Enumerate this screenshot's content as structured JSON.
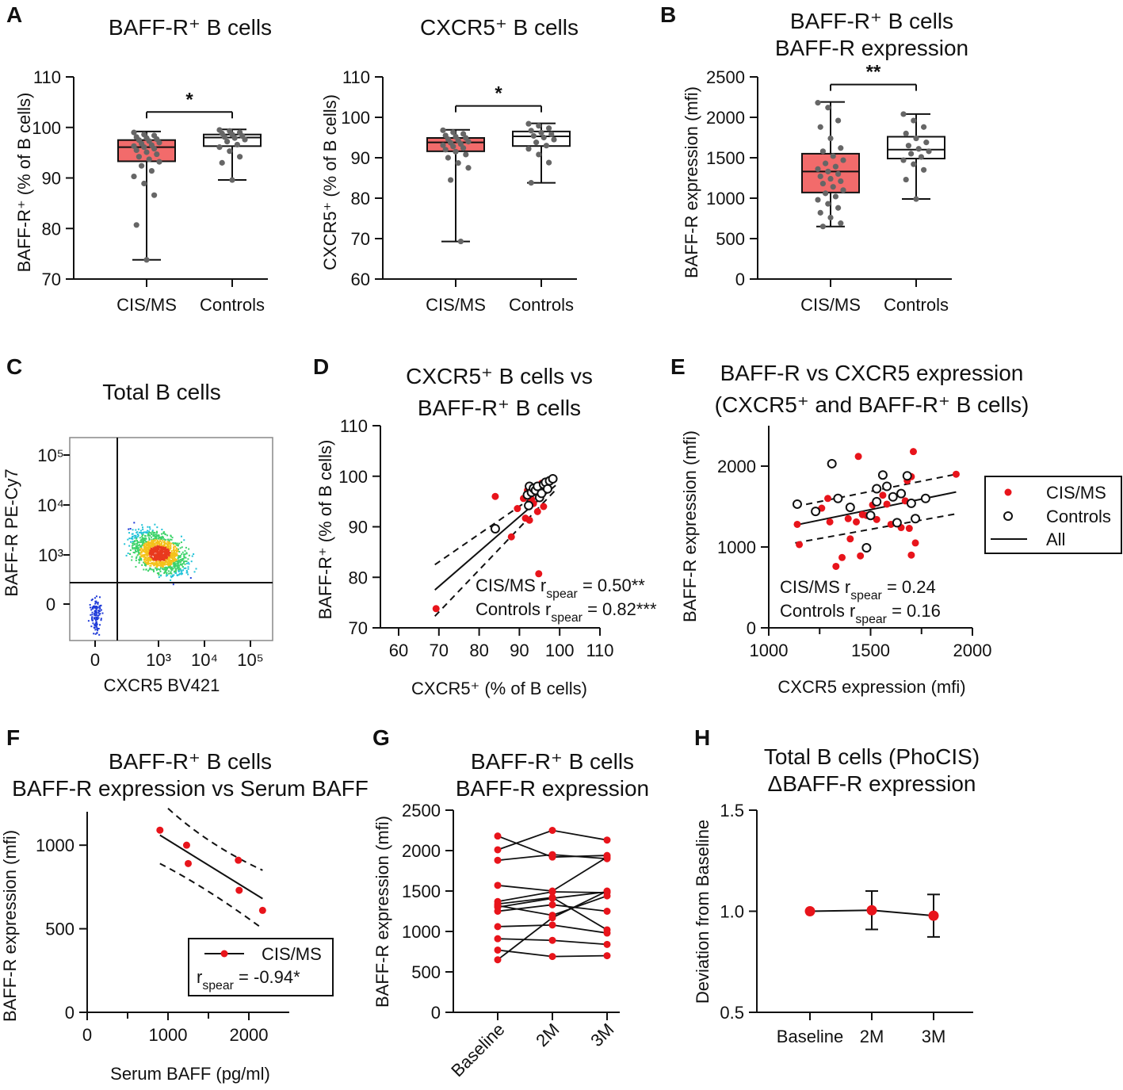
{
  "colors": {
    "cis_fill": "#f26b6b",
    "cis_dot": "#e8141b",
    "dot_grey": "#666666",
    "axis": "#111111"
  },
  "panels": {
    "A1": {
      "letter": "A",
      "title": [
        "BAFF-R⁺ B cells"
      ],
      "ylabel": "BAFF-R⁺ (% of B cells)",
      "yticks": [
        "70",
        "80",
        "90",
        "100",
        "110"
      ],
      "categories": [
        "CIS/MS",
        "Controls"
      ],
      "sig": "*"
    },
    "A2": {
      "title": [
        "CXCR5⁺ B cells"
      ],
      "ylabel": "CXCR5⁺ (% of B cells)",
      "yticks": [
        "60",
        "70",
        "80",
        "90",
        "100",
        "110"
      ],
      "categories": [
        "CIS/MS",
        "Controls"
      ],
      "sig": "*"
    },
    "B": {
      "letter": "B",
      "title": [
        "BAFF-R⁺ B cells",
        "BAFF-R expression"
      ],
      "ylabel": "BAFF-R expression (mfi)",
      "yticks": [
        "0",
        "500",
        "1000",
        "1500",
        "2000",
        "2500"
      ],
      "categories": [
        "CIS/MS",
        "Controls"
      ],
      "sig": "**"
    },
    "C": {
      "letter": "C",
      "title": [
        "Total B cells"
      ],
      "ylabel": "BAFF-R PE-Cy7",
      "xlabel": "CXCR5 BV421",
      "yticks": [
        "10⁵",
        "10⁴",
        "10³",
        "0"
      ],
      "xticks": [
        "0",
        "10³",
        "10⁴",
        "10⁵"
      ]
    },
    "D": {
      "letter": "D",
      "title": [
        "CXCR5⁺ B cells vs",
        "BAFF-R⁺ B cells"
      ],
      "ylabel": "BAFF-R⁺ (% of B cells)",
      "xlabel": "CXCR5⁺ (% of B cells)",
      "yticks": [
        "70",
        "80",
        "90",
        "100",
        "110"
      ],
      "xticks": [
        "60",
        "70",
        "80",
        "90",
        "100",
        "110"
      ],
      "stat1": "CIS/MS r",
      "stat1_sub": "spear",
      "stat1_val": " = 0.50**",
      "stat2": "Controls r",
      "stat2_sub": "spear",
      "stat2_val": " = 0.82***"
    },
    "E": {
      "letter": "E",
      "title": [
        "BAFF-R vs CXCR5 expression",
        "(CXCR5⁺ and BAFF-R⁺ B cells)"
      ],
      "ylabel": "BAFF-R expression (mfi)",
      "xlabel": "CXCR5 expression (mfi)",
      "yticks": [
        "0",
        "1000",
        "2000"
      ],
      "xticks": [
        "1000",
        "1500",
        "2000"
      ],
      "legend": [
        "CIS/MS",
        "Controls",
        "All"
      ],
      "stat1": "CIS/MS r",
      "stat1_sub": "spear",
      "stat1_val": " = 0.24",
      "stat2": "Controls r",
      "stat2_sub": "spear",
      "stat2_val": " = 0.16"
    },
    "F": {
      "letter": "F",
      "title": [
        "BAFF-R⁺ B cells",
        "BAFF-R expression vs Serum BAFF"
      ],
      "ylabel": "BAFF-R expression (mfi)",
      "xlabel": "Serum BAFF (pg/ml)",
      "yticks": [
        "0",
        "500",
        "1000"
      ],
      "xticks": [
        "0",
        "1000",
        "2000"
      ],
      "legend": "CIS/MS",
      "stat": "r",
      "stat_sub": "spear",
      "stat_val": " = -0.94*"
    },
    "G": {
      "letter": "G",
      "title": [
        "BAFF-R⁺ B cells",
        "BAFF-R expression"
      ],
      "ylabel": "BAFF-R expression (mfi)",
      "yticks": [
        "0",
        "500",
        "1000",
        "1500",
        "2000",
        "2500"
      ],
      "xticks": [
        "Baseline",
        "2M",
        "3M"
      ]
    },
    "H": {
      "letter": "H",
      "title": [
        "Total B cells (PhoCIS)",
        "ΔBAFF-R expression"
      ],
      "ylabel": "Deviation from Baseline",
      "yticks": [
        "0.5",
        "1.0",
        "1.5"
      ],
      "xticks": [
        "Baseline",
        "2M",
        "3M"
      ]
    }
  },
  "chart_data": [
    {
      "id": "A1",
      "type": "box",
      "title": "BAFF-R⁺ B cells",
      "ylabel": "BAFF-R⁺ (% of B cells)",
      "ylim": [
        70,
        110
      ],
      "groups": [
        {
          "name": "CIS/MS",
          "min": 73.8,
          "q1": 93.3,
          "median": 96.1,
          "q3": 97.5,
          "max": 99.2,
          "points": [
            99.0,
            98.6,
            98.4,
            98.1,
            97.9,
            97.7,
            97.5,
            97.3,
            97.0,
            96.8,
            96.5,
            96.3,
            96.1,
            95.8,
            95.5,
            95.1,
            94.7,
            94.2,
            93.7,
            93.2,
            92.4,
            91.4,
            90.3,
            88.9,
            86.6,
            80.7,
            73.8
          ]
        },
        {
          "name": "Controls",
          "min": 89.6,
          "q1": 96.3,
          "median": 98.0,
          "q3": 98.6,
          "max": 99.6,
          "points": [
            99.5,
            99.3,
            99.0,
            98.8,
            98.6,
            98.3,
            98.1,
            97.9,
            97.6,
            97.2,
            96.6,
            96.1,
            95.3,
            94.2,
            93.0,
            89.6
          ]
        }
      ],
      "significance": "*"
    },
    {
      "id": "A2",
      "type": "box",
      "title": "CXCR5⁺ B cells",
      "ylabel": "CXCR5⁺ (% of B cells)",
      "ylim": [
        60,
        110
      ],
      "groups": [
        {
          "name": "CIS/MS",
          "min": 69.3,
          "q1": 91.6,
          "median": 93.8,
          "q3": 94.9,
          "max": 96.9,
          "points": [
            96.8,
            96.3,
            95.9,
            95.5,
            95.2,
            94.9,
            94.6,
            94.3,
            94.0,
            93.7,
            93.4,
            93.1,
            92.8,
            92.4,
            92.0,
            91.5,
            90.8,
            90.0,
            88.7,
            87.5,
            84.5,
            69.3
          ]
        },
        {
          "name": "Controls",
          "min": 83.8,
          "q1": 92.9,
          "median": 95.3,
          "q3": 96.5,
          "max": 98.5,
          "points": [
            98.4,
            97.9,
            97.3,
            96.7,
            96.2,
            95.8,
            95.4,
            95.0,
            94.5,
            93.8,
            93.0,
            92.2,
            90.8,
            88.8,
            83.8
          ]
        }
      ],
      "significance": "*"
    },
    {
      "id": "B",
      "type": "box",
      "title": "BAFF-R⁺ B cells BAFF-R expression",
      "ylabel": "BAFF-R expression (mfi)",
      "ylim": [
        0,
        2500
      ],
      "groups": [
        {
          "name": "CIS/MS",
          "min": 650,
          "q1": 1070,
          "median": 1330,
          "q3": 1550,
          "max": 2190,
          "points": [
            2180,
            2120,
            1960,
            1880,
            1740,
            1620,
            1580,
            1520,
            1470,
            1430,
            1390,
            1360,
            1330,
            1300,
            1270,
            1240,
            1210,
            1180,
            1140,
            1100,
            1060,
            1020,
            980,
            930,
            880,
            820,
            760,
            690,
            650
          ]
        },
        {
          "name": "Controls",
          "min": 990,
          "q1": 1490,
          "median": 1600,
          "q3": 1760,
          "max": 2040,
          "points": [
            2040,
            1960,
            1880,
            1800,
            1740,
            1690,
            1650,
            1610,
            1580,
            1550,
            1510,
            1470,
            1420,
            1350,
            1230,
            990
          ]
        }
      ],
      "significance": "**"
    },
    {
      "id": "C",
      "type": "scatter",
      "title": "Total B cells",
      "xlabel": "CXCR5 BV421",
      "ylabel": "BAFF-R PE-Cy7",
      "note": "flow cytometry density plot; main population near CXCR5 10³ and BAFF-R 10³, minor population near 0/0; quadrant gates"
    },
    {
      "id": "D",
      "type": "scatter",
      "title": "CXCR5⁺ B cells vs BAFF-R⁺ B cells",
      "xlabel": "CXCR5⁺ (% of B cells)",
      "ylabel": "BAFF-R⁺ (% of B cells)",
      "xlim": [
        60,
        110
      ],
      "ylim": [
        70,
        110
      ],
      "series": [
        {
          "name": "CIS/MS",
          "x": [
            84.0,
            88.0,
            89.5,
            91.0,
            91.5,
            92.0,
            92.5,
            93.0,
            93.5,
            94.0,
            94.5,
            95.0,
            95.5,
            96.0,
            96.5,
            97.0,
            69.3,
            94.8
          ],
          "y": [
            96.0,
            88.0,
            93.6,
            95.6,
            91.7,
            97.2,
            91.3,
            95.4,
            94.6,
            97.8,
            93.0,
            96.8,
            98.6,
            94.0,
            97.4,
            99.0,
            73.8,
            80.7
          ]
        },
        {
          "name": "Controls",
          "x": [
            84.0,
            92.0,
            92.5,
            93.0,
            93.5,
            94.0,
            94.5,
            95.0,
            95.5,
            96.0,
            96.5,
            97.0,
            97.5,
            98.3,
            92.3
          ],
          "y": [
            89.6,
            96.3,
            98.0,
            96.8,
            97.6,
            97.2,
            98.0,
            95.8,
            96.6,
            98.4,
            98.8,
            97.5,
            99.1,
            99.5,
            94.2
          ]
        }
      ],
      "fit": {
        "x": [
          69,
          99
        ],
        "y": [
          77.5,
          98.2
        ]
      },
      "ci_upper": {
        "x": [
          69,
          99
        ],
        "y": [
          82.5,
          99.0
        ]
      },
      "ci_lower": {
        "x": [
          69,
          99
        ],
        "y": [
          72.3,
          97.3
        ]
      },
      "annotations": [
        "CIS/MS rspear = 0.50**",
        "Controls rspear = 0.82***"
      ]
    },
    {
      "id": "E",
      "type": "scatter",
      "title": "BAFF-R vs CXCR5 expression (CXCR5⁺ and BAFF-R⁺ B cells)",
      "xlabel": "CXCR5 expression (mfi)",
      "ylabel": "BAFF-R expression (mfi)",
      "xlim": [
        1000,
        2000
      ],
      "ylim": [
        0,
        2500
      ],
      "series": [
        {
          "name": "CIS/MS",
          "x": [
            1140,
            1150,
            1260,
            1290,
            1300,
            1330,
            1360,
            1390,
            1400,
            1430,
            1440,
            1460,
            1480,
            1510,
            1530,
            1560,
            1580,
            1600,
            1650,
            1670,
            1680,
            1690,
            1700,
            1700,
            1710,
            1720,
            1920,
            1450
          ],
          "y": [
            1280,
            1030,
            1480,
            1600,
            1310,
            760,
            870,
            1350,
            1100,
            1310,
            2120,
            1400,
            1390,
            1520,
            1340,
            1640,
            1530,
            1280,
            1240,
            1570,
            1820,
            1230,
            1870,
            900,
            2180,
            1050,
            1900,
            890
          ]
        },
        {
          "name": "Controls",
          "x": [
            1140,
            1230,
            1310,
            1340,
            1400,
            1480,
            1500,
            1530,
            1560,
            1580,
            1610,
            1630,
            1650,
            1680,
            1700,
            1720,
            1770,
            1530
          ],
          "y": [
            1530,
            1440,
            2030,
            1600,
            1490,
            990,
            1390,
            1720,
            1890,
            1750,
            1620,
            1300,
            1660,
            1880,
            1540,
            1350,
            1600,
            1560
          ]
        }
      ],
      "fit": {
        "x": [
          1130,
          1920
        ],
        "y": [
          1270,
          1680
        ]
      },
      "ci_upper": {
        "x": [
          1130,
          1920
        ],
        "y": [
          1500,
          1900
        ]
      },
      "ci_lower": {
        "x": [
          1130,
          1920
        ],
        "y": [
          1050,
          1410
        ]
      },
      "legend": [
        "CIS/MS",
        "Controls",
        "All"
      ],
      "annotations": [
        "CIS/MS rspear = 0.24",
        "Controls rspear = 0.16"
      ]
    },
    {
      "id": "F",
      "type": "scatter",
      "title": "BAFF-R⁺ B cells BAFF-R expression vs Serum BAFF",
      "xlabel": "Serum BAFF (pg/ml)",
      "ylabel": "BAFF-R expression (mfi)",
      "xlim": [
        0,
        2500
      ],
      "ylim": [
        0,
        1200
      ],
      "series": [
        {
          "name": "CIS/MS",
          "x": [
            900,
            1230,
            1250,
            1870,
            1880,
            2170
          ],
          "y": [
            1090,
            1000,
            890,
            910,
            730,
            610
          ]
        }
      ],
      "fit": {
        "x": [
          900,
          2170
        ],
        "y": [
          1060,
          680
        ]
      },
      "ci_upper": {
        "x": [
          1000,
          1500,
          2170
        ],
        "y": [
          1220,
          1000,
          850
        ]
      },
      "ci_lower": {
        "x": [
          900,
          1500,
          2170
        ],
        "y": [
          890,
          740,
          500
        ]
      },
      "annotations": [
        "rspear = -0.94*"
      ]
    },
    {
      "id": "G",
      "type": "line",
      "title": "BAFF-R⁺ B cells BAFF-R expression",
      "ylabel": "BAFF-R expression (mfi)",
      "categories": [
        "Baseline",
        "2M",
        "3M"
      ],
      "ylim": [
        0,
        2500
      ],
      "series": [
        {
          "values": [
            2180,
            1920,
            1940
          ]
        },
        {
          "values": [
            2010,
            2250,
            2130
          ]
        },
        {
          "values": [
            1880,
            1950,
            1900
          ]
        },
        {
          "values": [
            1570,
            1500,
            1920
          ]
        },
        {
          "values": [
            1370,
            1490,
            1480
          ]
        },
        {
          "values": [
            1340,
            1420,
            1020
          ]
        },
        {
          "values": [
            1320,
            1200,
            1440
          ]
        },
        {
          "values": [
            1300,
            1410,
            1490
          ]
        },
        {
          "values": [
            1250,
            1330,
            1250
          ]
        },
        {
          "values": [
            1060,
            1080,
            980
          ]
        },
        {
          "values": [
            910,
            890,
            840
          ]
        },
        {
          "values": [
            770,
            690,
            700
          ]
        },
        {
          "values": [
            650,
            1170,
            1500
          ]
        }
      ]
    },
    {
      "id": "H",
      "type": "line",
      "title": "Total B cells (PhoCIS) ΔBAFF-R expression",
      "ylabel": "Deviation from Baseline",
      "categories": [
        "Baseline",
        "2M",
        "3M"
      ],
      "ylim": [
        0.5,
        1.5
      ],
      "series": [
        {
          "values": [
            1.0,
            1.005,
            0.978
          ],
          "err": [
            0,
            0.095,
            0.105
          ]
        }
      ]
    }
  ]
}
